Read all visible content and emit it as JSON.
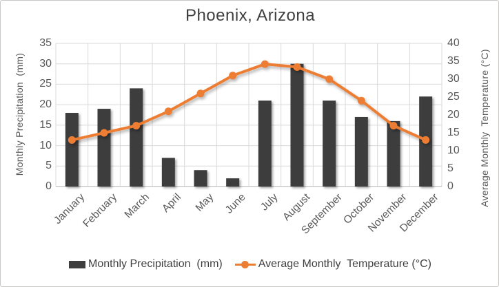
{
  "chart_data": {
    "type": "combo",
    "title": "Phoenix, Arizona",
    "categories": [
      "January",
      "February",
      "March",
      "April",
      "May",
      "June",
      "July",
      "August",
      "September",
      "October",
      "November",
      "December"
    ],
    "series": [
      {
        "name": "Monthly Precipitation  (mm)",
        "type": "bar",
        "axis": "left",
        "color": "#3e3e3e",
        "values": [
          18,
          19,
          24,
          7,
          4,
          2,
          21,
          30,
          21,
          17,
          16,
          22
        ]
      },
      {
        "name": "Average Monthly  Temperature (°C)",
        "type": "line",
        "axis": "right",
        "color": "#ed7d31",
        "values": [
          13,
          15,
          17,
          21,
          26,
          31,
          34.2,
          33.4,
          30,
          24,
          17,
          13
        ]
      }
    ],
    "y_left": {
      "label": "Monthly Precipitation  (mm)",
      "min": 0,
      "max": 35,
      "step": 5,
      "ticks": [
        "0",
        "5",
        "10",
        "15",
        "20",
        "25",
        "30",
        "35"
      ]
    },
    "y_right": {
      "label": "Average Monthly  Temperature (°C)",
      "min": 0,
      "max": 40,
      "step": 5,
      "ticks": [
        "0",
        "5",
        "10",
        "15",
        "20",
        "25",
        "30",
        "35",
        "40"
      ]
    },
    "grid": true,
    "legend_position": "bottom"
  },
  "colors": {
    "bar": "#3e3e3e",
    "line": "#ed7d31",
    "gridline": "#d9d9d9",
    "axis_line": "#bfbfbf",
    "tick_text": "#595959",
    "title_text": "#3f3f3f"
  }
}
